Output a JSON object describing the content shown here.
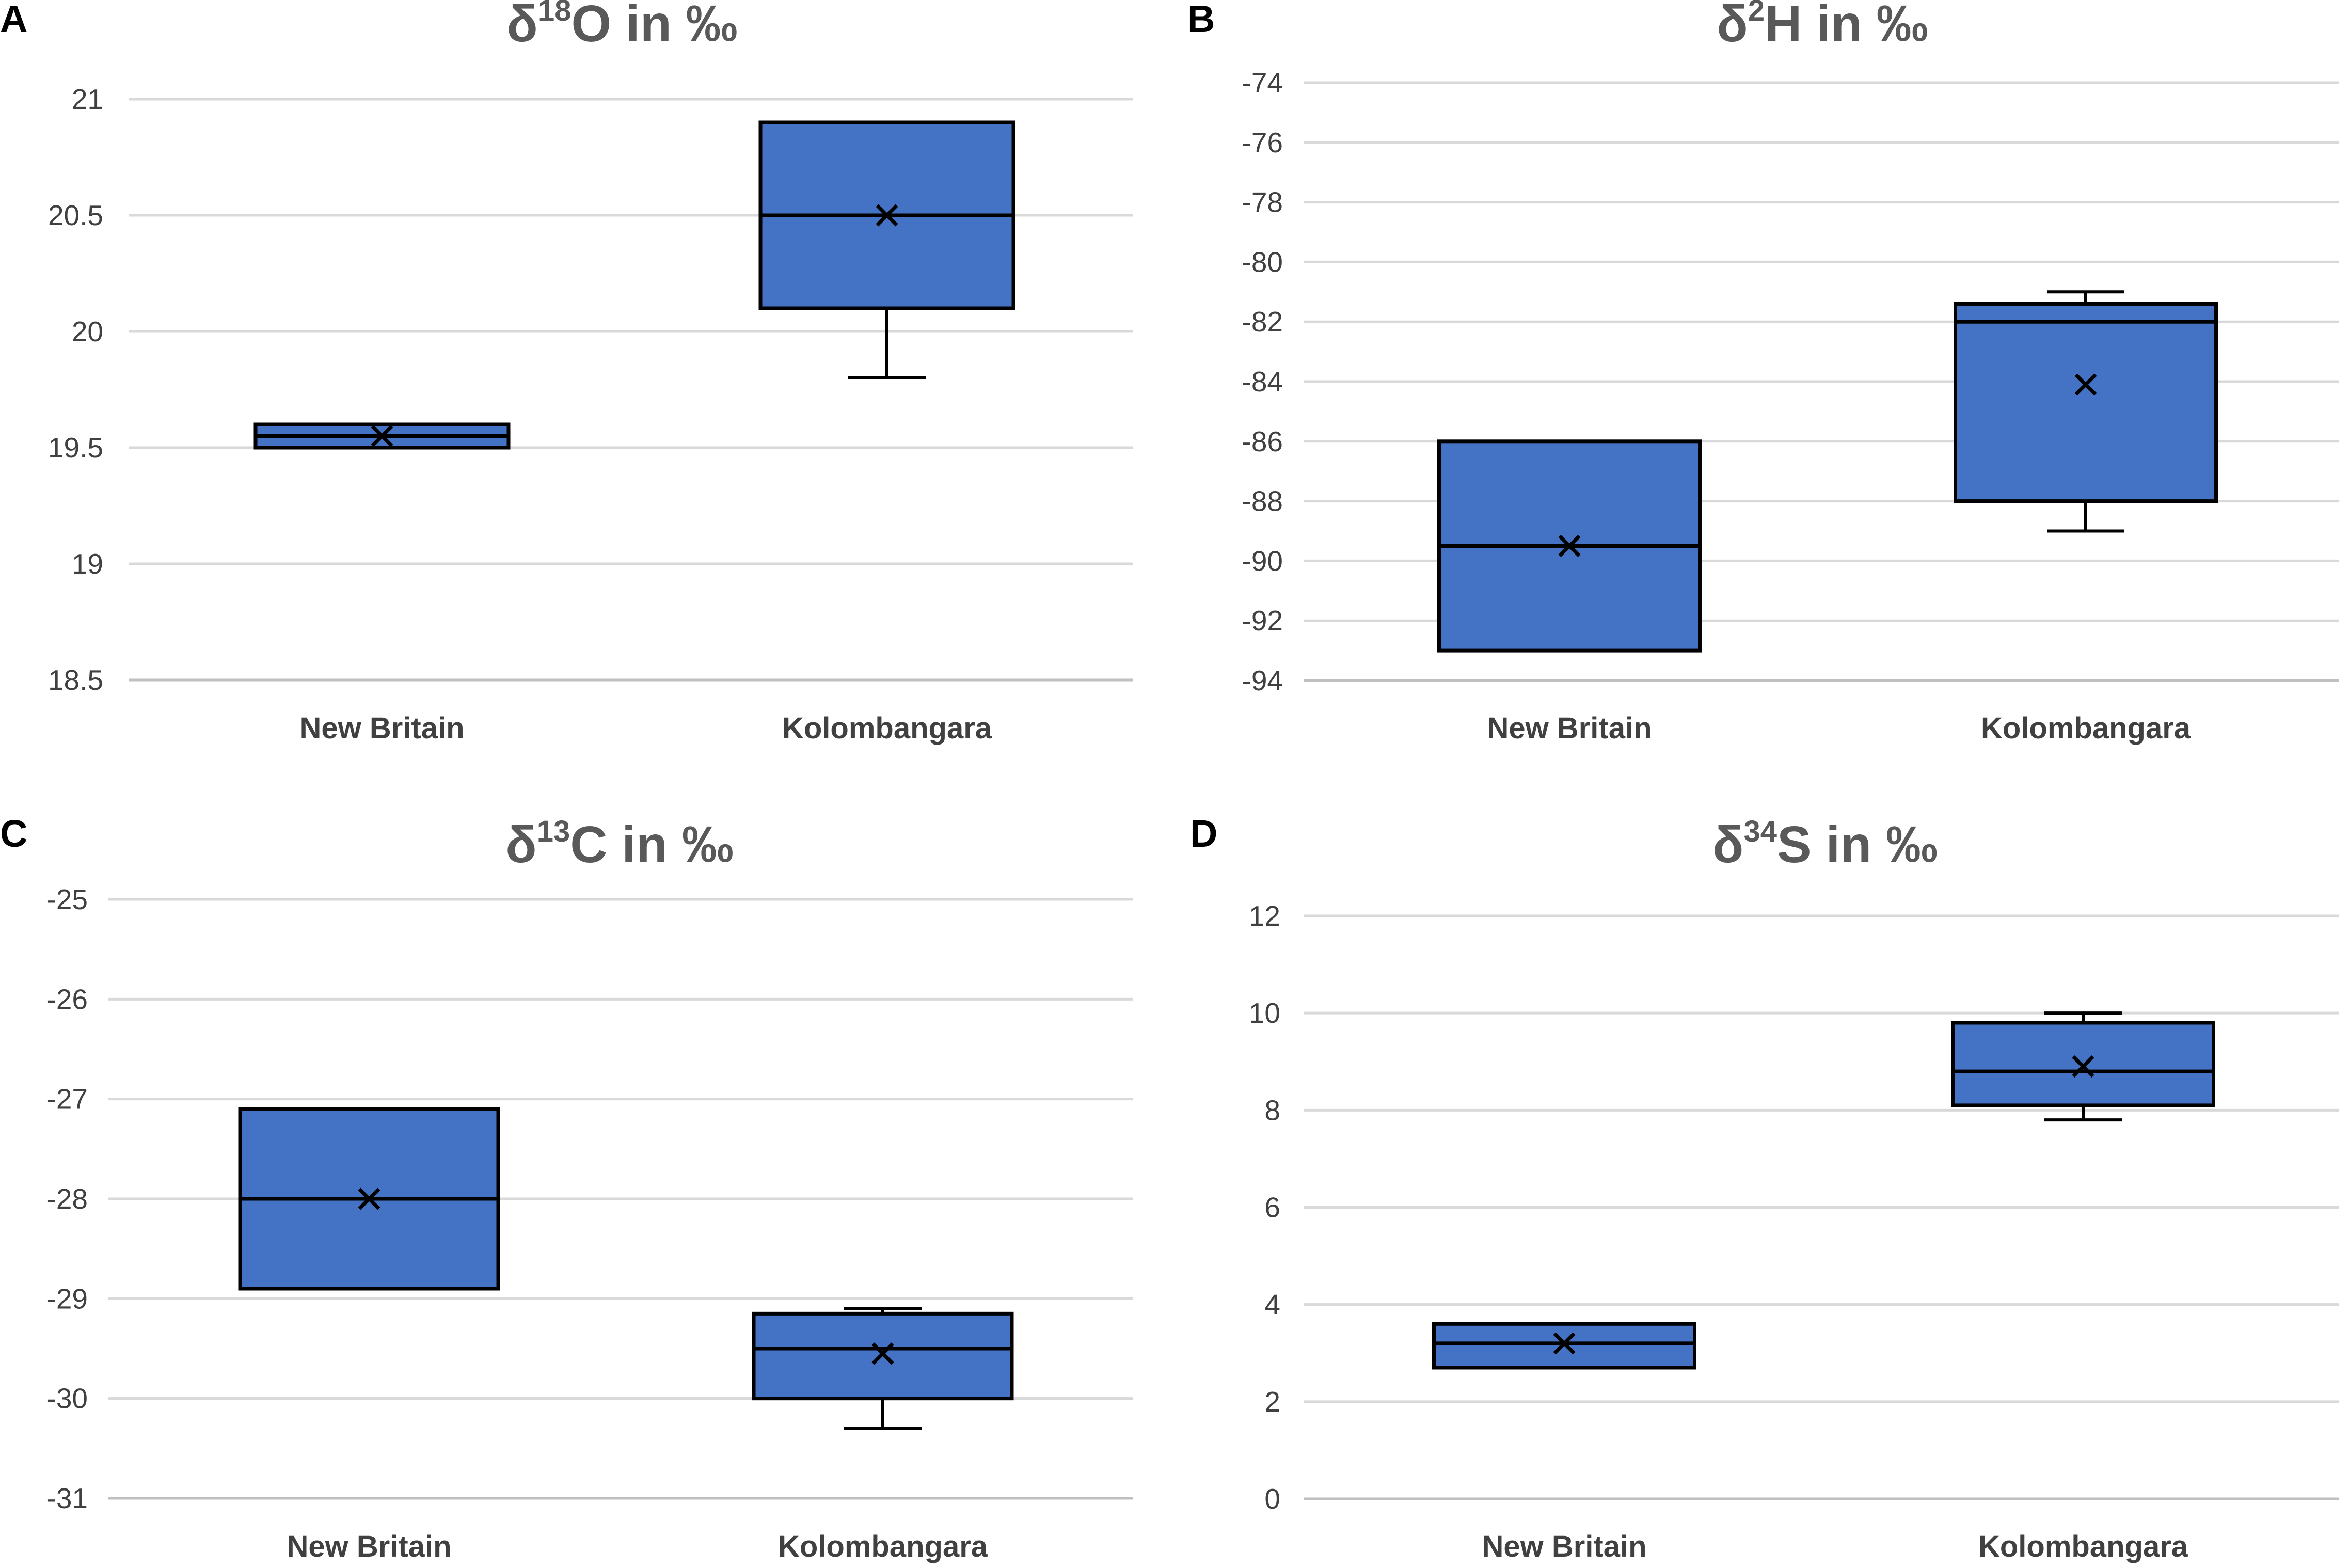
{
  "chart_data": [
    {
      "type": "box",
      "panel": "A",
      "title": {
        "prefix": "δ",
        "sup": "18",
        "element": "O",
        "suffix": " in ‰"
      },
      "ylim": [
        18.5,
        21
      ],
      "yticks": [
        18.5,
        19,
        19.5,
        20,
        20.5,
        21
      ],
      "categories": [
        "New Britain",
        "Kolombangara"
      ],
      "boxes": [
        {
          "category": "New Britain",
          "min": 19.5,
          "q1": 19.5,
          "median": 19.55,
          "q3": 19.6,
          "max": 19.6,
          "mean": 19.55
        },
        {
          "category": "Kolombangara",
          "min": 19.8,
          "q1": 20.1,
          "median": 20.5,
          "q3": 20.9,
          "max": 20.9,
          "mean": 20.5
        }
      ]
    },
    {
      "type": "box",
      "panel": "B",
      "title": {
        "prefix": "δ",
        "sup": "2",
        "element": "H",
        "suffix": " in ‰"
      },
      "ylim": [
        -94,
        -74
      ],
      "yticks": [
        -94,
        -92,
        -90,
        -88,
        -86,
        -84,
        -82,
        -80,
        -78,
        -76,
        -74
      ],
      "categories": [
        "New Britain",
        "Kolombangara"
      ],
      "boxes": [
        {
          "category": "New Britain",
          "min": -93,
          "q1": -93,
          "median": -89.5,
          "q3": -86,
          "max": -86,
          "mean": -89.5
        },
        {
          "category": "Kolombangara",
          "min": -89,
          "q1": -88,
          "median": -82,
          "q3": -81.4,
          "max": -81,
          "mean": -84.1
        }
      ]
    },
    {
      "type": "box",
      "panel": "C",
      "title": {
        "prefix": "δ",
        "sup": "13",
        "element": "C",
        "suffix": " in ‰"
      },
      "ylim": [
        -31,
        -25
      ],
      "yticks": [
        -31,
        -30,
        -29,
        -28,
        -27,
        -26,
        -25
      ],
      "categories": [
        "New Britain",
        "Kolombangara"
      ],
      "boxes": [
        {
          "category": "New Britain",
          "min": -28.9,
          "q1": -28.9,
          "median": -28,
          "q3": -27.1,
          "max": -27.1,
          "mean": -28
        },
        {
          "category": "Kolombangara",
          "min": -30.3,
          "q1": -30,
          "median": -29.5,
          "q3": -29.15,
          "max": -29.1,
          "mean": -29.55
        }
      ]
    },
    {
      "type": "box",
      "panel": "D",
      "title": {
        "prefix": "δ",
        "sup": "34",
        "element": "S",
        "suffix": " in ‰"
      },
      "ylim": [
        0,
        12
      ],
      "yticks": [
        0,
        2,
        4,
        6,
        8,
        10,
        12
      ],
      "categories": [
        "New Britain",
        "Kolombangara"
      ],
      "boxes": [
        {
          "category": "New Britain",
          "min": 2.7,
          "q1": 2.7,
          "median": 3.2,
          "q3": 3.6,
          "max": 3.6,
          "mean": 3.2
        },
        {
          "category": "Kolombangara",
          "min": 7.8,
          "q1": 8.1,
          "median": 8.8,
          "q3": 9.8,
          "max": 10,
          "mean": 8.9
        }
      ]
    }
  ]
}
